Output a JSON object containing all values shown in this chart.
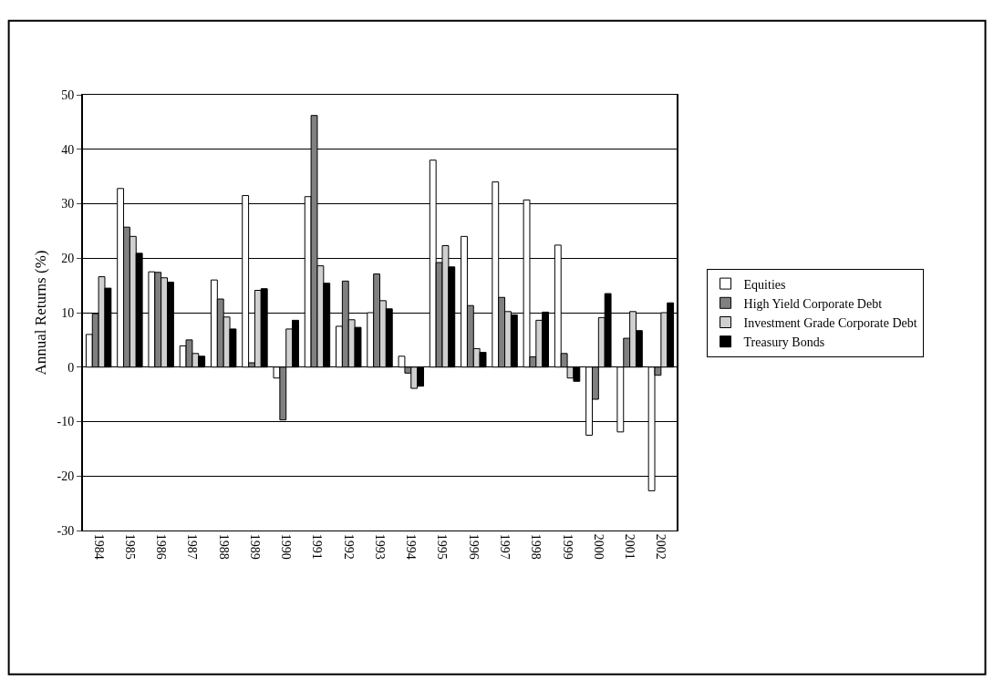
{
  "chart_data": {
    "type": "bar",
    "ylabel": "Annual Returns (%)",
    "categories": [
      "1984",
      "1985",
      "1986",
      "1987",
      "1988",
      "1989",
      "1990",
      "1991",
      "1992",
      "1993",
      "1994",
      "1995",
      "1996",
      "1997",
      "1998",
      "1999",
      "2000",
      "2001",
      "2002"
    ],
    "series": [
      {
        "name": "Equities",
        "color": "#ffffff",
        "values": [
          6,
          32.8,
          17.5,
          3.9,
          16,
          31.5,
          -2,
          31.3,
          7.5,
          10,
          2,
          38,
          24,
          34,
          30.7,
          22.4,
          -12.5,
          -11.9,
          -22.7
        ]
      },
      {
        "name": "High Yield Corporate Debt",
        "color": "#808080",
        "values": [
          9.8,
          25.7,
          17.4,
          5,
          12.5,
          0.8,
          -9.7,
          46.2,
          15.8,
          17.1,
          -1.1,
          19.2,
          11.3,
          12.8,
          1.9,
          2.5,
          -5.9,
          5.3,
          -1.5
        ]
      },
      {
        "name": "Investment Grade Corporate Debt",
        "color": "#d0d0d0",
        "values": [
          16.6,
          24,
          16.4,
          2.5,
          9.2,
          14.1,
          7,
          18.6,
          8.7,
          12.2,
          -3.9,
          22.3,
          3.4,
          10.2,
          8.6,
          -2,
          9.1,
          10.2,
          10
        ]
      },
      {
        "name": "Treasury Bonds",
        "color": "#000000",
        "values": [
          14.5,
          20.9,
          15.6,
          2,
          7,
          14.4,
          8.6,
          15.4,
          7.3,
          10.7,
          -3.5,
          18.4,
          2.7,
          9.6,
          10.1,
          -2.6,
          13.5,
          6.7,
          11.8
        ]
      }
    ],
    "ylim": [
      -30,
      50
    ],
    "yticks": [
      -30,
      -20,
      -10,
      0,
      10,
      20,
      30,
      40,
      50
    ],
    "grid": "y",
    "legend": "right"
  }
}
